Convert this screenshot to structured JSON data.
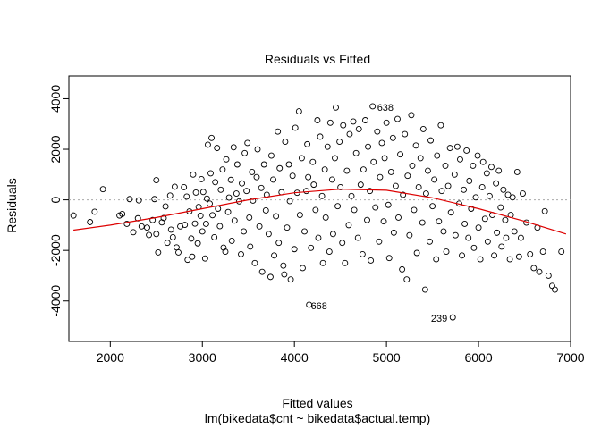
{
  "chart_data": {
    "type": "scatter",
    "title": "Residuals vs Fitted",
    "xlabel": "Fitted values",
    "subtitle": "lm(bikedata$cnt ~ bikedata$actual.temp)",
    "ylabel": "Residuals",
    "xlim": [
      1550,
      7000
    ],
    "ylim": [
      -5600,
      4900
    ],
    "x_ticks": [
      2000,
      3000,
      4000,
      5000,
      6000,
      7000
    ],
    "y_ticks": [
      -4000,
      -2000,
      0,
      2000,
      4000
    ],
    "x_tick_labels": [
      "2000",
      "3000",
      "4000",
      "5000",
      "6000",
      "7000"
    ],
    "y_tick_labels": [
      "-4000",
      "-2000",
      "0",
      "2000",
      "4000"
    ],
    "reference_line": {
      "y": 0,
      "style": "dotted",
      "color": "#aaaaaa"
    },
    "smoother": {
      "color": "#dd0000",
      "x": [
        1600,
        2000,
        2500,
        3000,
        3500,
        4000,
        4500,
        5000,
        5500,
        6000,
        6500,
        6950
      ],
      "y": [
        -1200,
        -1000,
        -700,
        -350,
        0,
        280,
        420,
        380,
        80,
        -350,
        -850,
        -1350
      ]
    },
    "point_color": "#000000",
    "labeled_points": [
      {
        "label": "638",
        "x": 4850,
        "y": 3700
      },
      {
        "label": "668",
        "x": 4130,
        "y": -4150
      },
      {
        "label": "239",
        "x": 5720,
        "y": -4650
      }
    ],
    "points": [
      [
        1600,
        -620
      ],
      [
        1780,
        -880
      ],
      [
        1830,
        -470
      ],
      [
        1920,
        420
      ],
      [
        2100,
        -620
      ],
      [
        2130,
        -560
      ],
      [
        2180,
        -950
      ],
      [
        2210,
        30
      ],
      [
        2250,
        -1280
      ],
      [
        2300,
        -730
      ],
      [
        2310,
        -20
      ],
      [
        2340,
        -1050
      ],
      [
        2400,
        -1100
      ],
      [
        2420,
        -1390
      ],
      [
        2460,
        -800
      ],
      [
        2480,
        30
      ],
      [
        2500,
        780
      ],
      [
        2500,
        -1350
      ],
      [
        2520,
        -2080
      ],
      [
        2560,
        -890
      ],
      [
        2580,
        -720
      ],
      [
        2600,
        -260
      ],
      [
        2620,
        -1700
      ],
      [
        2650,
        170
      ],
      [
        2660,
        -1180
      ],
      [
        2680,
        -1480
      ],
      [
        2700,
        520
      ],
      [
        2720,
        -1880
      ],
      [
        2740,
        -2080
      ],
      [
        2760,
        -1050
      ],
      [
        2800,
        500
      ],
      [
        2810,
        -990
      ],
      [
        2830,
        130
      ],
      [
        2840,
        -2370
      ],
      [
        2860,
        -460
      ],
      [
        2880,
        -1530
      ],
      [
        2890,
        -2250
      ],
      [
        2900,
        1000
      ],
      [
        2920,
        -940
      ],
      [
        2930,
        290
      ],
      [
        2950,
        -1720
      ],
      [
        2960,
        -280
      ],
      [
        2980,
        -630
      ],
      [
        2990,
        820
      ],
      [
        3000,
        -1250
      ],
      [
        3010,
        310
      ],
      [
        3030,
        -2320
      ],
      [
        3040,
        -950
      ],
      [
        3050,
        50
      ],
      [
        3060,
        2180
      ],
      [
        3080,
        -150
      ],
      [
        3090,
        1050
      ],
      [
        3100,
        2450
      ],
      [
        3110,
        -610
      ],
      [
        3130,
        -1480
      ],
      [
        3140,
        700
      ],
      [
        3160,
        2050
      ],
      [
        3170,
        -350
      ],
      [
        3190,
        -1040
      ],
      [
        3200,
        400
      ],
      [
        3220,
        1200
      ],
      [
        3230,
        -1890
      ],
      [
        3250,
        -2050
      ],
      [
        3260,
        1600
      ],
      [
        3280,
        -480
      ],
      [
        3290,
        90
      ],
      [
        3310,
        790
      ],
      [
        3320,
        -1620
      ],
      [
        3340,
        2080
      ],
      [
        3350,
        -820
      ],
      [
        3370,
        250
      ],
      [
        3380,
        1400
      ],
      [
        3400,
        -60
      ],
      [
        3420,
        -2150
      ],
      [
        3430,
        650
      ],
      [
        3450,
        -1250
      ],
      [
        3460,
        1850
      ],
      [
        3480,
        350
      ],
      [
        3490,
        2250
      ],
      [
        3510,
        -700
      ],
      [
        3520,
        -1850
      ],
      [
        3540,
        1100
      ],
      [
        3550,
        -30
      ],
      [
        3570,
        -2500
      ],
      [
        3590,
        900
      ],
      [
        3600,
        2000
      ],
      [
        3620,
        -1050
      ],
      [
        3640,
        470
      ],
      [
        3650,
        -2850
      ],
      [
        3670,
        1400
      ],
      [
        3690,
        -420
      ],
      [
        3700,
        200
      ],
      [
        3720,
        -1350
      ],
      [
        3740,
        -3050
      ],
      [
        3750,
        1750
      ],
      [
        3770,
        800
      ],
      [
        3780,
        -2200
      ],
      [
        3800,
        -650
      ],
      [
        3820,
        2700
      ],
      [
        3830,
        -1700
      ],
      [
        3840,
        1250
      ],
      [
        3860,
        300
      ],
      [
        3880,
        -2600
      ],
      [
        3890,
        -2950
      ],
      [
        3900,
        2300
      ],
      [
        3920,
        -1100
      ],
      [
        3940,
        1400
      ],
      [
        3950,
        -50
      ],
      [
        3960,
        -3150
      ],
      [
        3980,
        950
      ],
      [
        4000,
        -1950
      ],
      [
        4010,
        2850
      ],
      [
        4030,
        280
      ],
      [
        4050,
        3500
      ],
      [
        4060,
        -600
      ],
      [
        4080,
        1650
      ],
      [
        4090,
        -2700
      ],
      [
        4110,
        -1250
      ],
      [
        4130,
        350
      ],
      [
        4140,
        2200
      ],
      [
        4150,
        900
      ],
      [
        4160,
        -4150
      ],
      [
        4180,
        -1900
      ],
      [
        4200,
        1500
      ],
      [
        4210,
        600
      ],
      [
        4230,
        -400
      ],
      [
        4250,
        3150
      ],
      [
        4260,
        -1500
      ],
      [
        4280,
        2500
      ],
      [
        4300,
        150
      ],
      [
        4310,
        -2500
      ],
      [
        4330,
        1200
      ],
      [
        4340,
        -700
      ],
      [
        4360,
        2100
      ],
      [
        4380,
        -2050
      ],
      [
        4390,
        3050
      ],
      [
        4410,
        800
      ],
      [
        4420,
        -1350
      ],
      [
        4440,
        1650
      ],
      [
        4450,
        3650
      ],
      [
        4470,
        -250
      ],
      [
        4490,
        2300
      ],
      [
        4500,
        500
      ],
      [
        4520,
        -1700
      ],
      [
        4530,
        2950
      ],
      [
        4550,
        -2500
      ],
      [
        4570,
        1150
      ],
      [
        4590,
        -1000
      ],
      [
        4600,
        2600
      ],
      [
        4620,
        150
      ],
      [
        4640,
        3100
      ],
      [
        4650,
        -400
      ],
      [
        4670,
        1850
      ],
      [
        4690,
        -1500
      ],
      [
        4700,
        2800
      ],
      [
        4720,
        600
      ],
      [
        4740,
        -2150
      ],
      [
        4750,
        1200
      ],
      [
        4770,
        3150
      ],
      [
        4790,
        -800
      ],
      [
        4800,
        2100
      ],
      [
        4820,
        350
      ],
      [
        4830,
        -2400
      ],
      [
        4850,
        3700
      ],
      [
        4860,
        1500
      ],
      [
        4880,
        -300
      ],
      [
        4900,
        2700
      ],
      [
        4920,
        -1650
      ],
      [
        4930,
        900
      ],
      [
        4950,
        2250
      ],
      [
        4970,
        -850
      ],
      [
        4980,
        1650
      ],
      [
        5000,
        3050
      ],
      [
        5020,
        -200
      ],
      [
        5030,
        -2300
      ],
      [
        5050,
        1100
      ],
      [
        5070,
        2450
      ],
      [
        5080,
        -1300
      ],
      [
        5100,
        550
      ],
      [
        5120,
        3200
      ],
      [
        5130,
        -700
      ],
      [
        5150,
        1800
      ],
      [
        5170,
        -2750
      ],
      [
        5180,
        200
      ],
      [
        5200,
        2600
      ],
      [
        5220,
        -3150
      ],
      [
        5230,
        950
      ],
      [
        5250,
        -1400
      ],
      [
        5270,
        3350
      ],
      [
        5280,
        1350
      ],
      [
        5300,
        -400
      ],
      [
        5320,
        2150
      ],
      [
        5330,
        -2100
      ],
      [
        5350,
        500
      ],
      [
        5370,
        1650
      ],
      [
        5390,
        -900
      ],
      [
        5400,
        2800
      ],
      [
        5420,
        -3550
      ],
      [
        5430,
        250
      ],
      [
        5450,
        1150
      ],
      [
        5470,
        -1650
      ],
      [
        5480,
        2350
      ],
      [
        5500,
        -250
      ],
      [
        5520,
        800
      ],
      [
        5540,
        -2350
      ],
      [
        5550,
        1750
      ],
      [
        5570,
        -850
      ],
      [
        5590,
        2950
      ],
      [
        5600,
        350
      ],
      [
        5620,
        -1250
      ],
      [
        5640,
        1350
      ],
      [
        5650,
        -2050
      ],
      [
        5670,
        550
      ],
      [
        5690,
        2050
      ],
      [
        5700,
        -500
      ],
      [
        5720,
        -4650
      ],
      [
        5740,
        1000
      ],
      [
        5750,
        -1400
      ],
      [
        5770,
        2100
      ],
      [
        5790,
        -150
      ],
      [
        5800,
        1600
      ],
      [
        5820,
        -2200
      ],
      [
        5840,
        400
      ],
      [
        5850,
        -950
      ],
      [
        5870,
        1950
      ],
      [
        5890,
        -1500
      ],
      [
        5900,
        750
      ],
      [
        5920,
        -350
      ],
      [
        5940,
        1350
      ],
      [
        5950,
        -1900
      ],
      [
        5970,
        100
      ],
      [
        5990,
        1750
      ],
      [
        6000,
        -1100
      ],
      [
        6020,
        -2350
      ],
      [
        6040,
        500
      ],
      [
        6050,
        1500
      ],
      [
        6070,
        -750
      ],
      [
        6090,
        1050
      ],
      [
        6100,
        -1650
      ],
      [
        6120,
        150
      ],
      [
        6140,
        1300
      ],
      [
        6150,
        -600
      ],
      [
        6170,
        -2200
      ],
      [
        6190,
        650
      ],
      [
        6200,
        -1300
      ],
      [
        6220,
        1150
      ],
      [
        6240,
        -300
      ],
      [
        6250,
        -1850
      ],
      [
        6270,
        400
      ],
      [
        6290,
        -800
      ],
      [
        6300,
        -1500
      ],
      [
        6320,
        200
      ],
      [
        6340,
        -2350
      ],
      [
        6350,
        -600
      ],
      [
        6370,
        100
      ],
      [
        6390,
        -1250
      ],
      [
        6420,
        1100
      ],
      [
        6440,
        -2250
      ],
      [
        6460,
        -1500
      ],
      [
        6480,
        250
      ],
      [
        6520,
        -900
      ],
      [
        6560,
        -2150
      ],
      [
        6600,
        -2700
      ],
      [
        6640,
        -1100
      ],
      [
        6660,
        -2850
      ],
      [
        6700,
        -2050
      ],
      [
        6720,
        -450
      ],
      [
        6760,
        -3000
      ],
      [
        6800,
        -3400
      ],
      [
        6830,
        -3550
      ],
      [
        6900,
        -2050
      ]
    ]
  }
}
